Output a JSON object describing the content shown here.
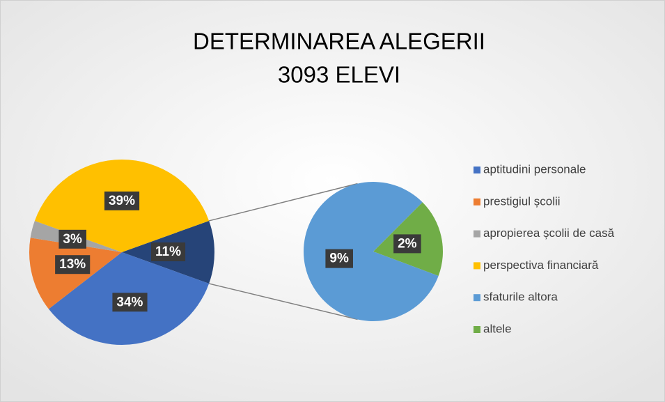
{
  "chart_data": {
    "type": "pie-of-pie",
    "title": "DETERMINAREA ALEGERII",
    "subtitle": "3093 ELEVI",
    "categories": [
      "aptitudini personale",
      "prestigiul școlii",
      "apropierea  școlii de casă",
      "perspectiva financiară",
      "sfaturile altora",
      "altele"
    ],
    "values": [
      34,
      13,
      3,
      39,
      9,
      2
    ],
    "value_labels": [
      "34%",
      "13%",
      "3%",
      "39%",
      "9%",
      "2%"
    ],
    "colors": [
      "#4472c4",
      "#ed7d31",
      "#a5a5a5",
      "#ffc000",
      "#5b9bd5",
      "#70ad47"
    ],
    "split": 2,
    "other_value": 11,
    "other_label": "11%",
    "other_color": "#264478",
    "legend": "right"
  }
}
